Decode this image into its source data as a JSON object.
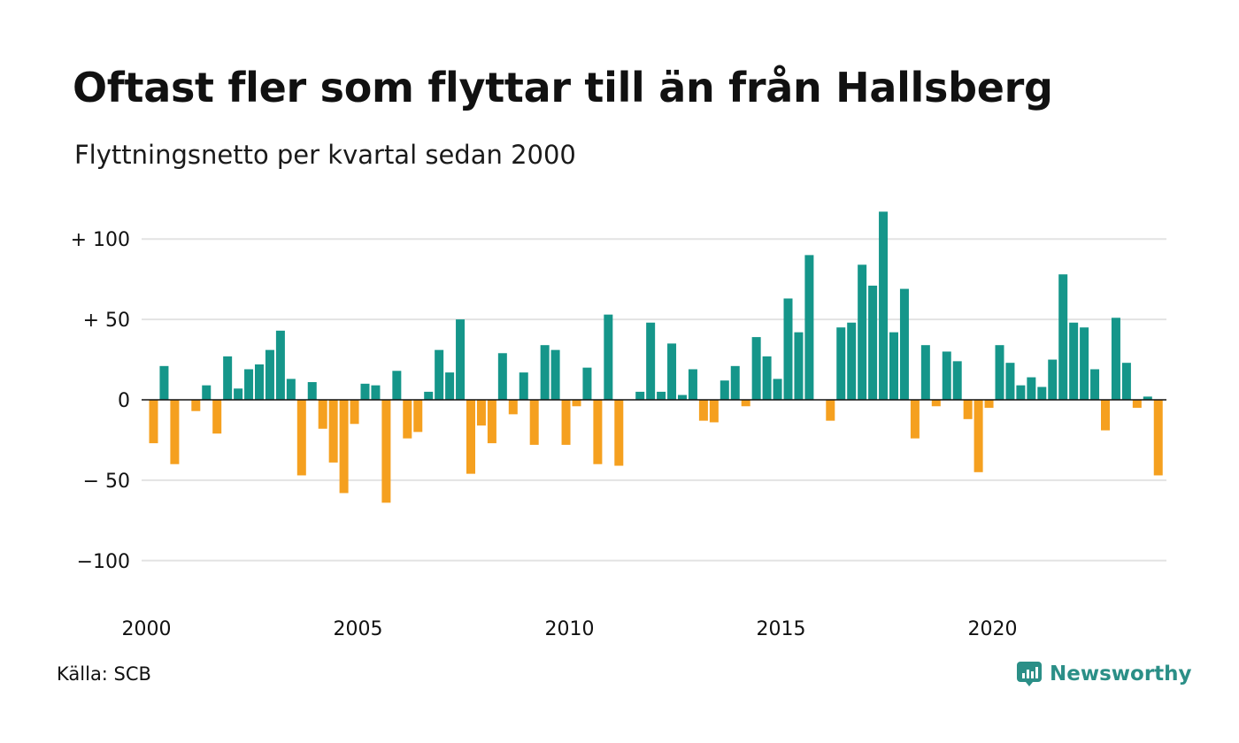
{
  "title": "Oftast fler som flyttar till än från Hallsberg",
  "subtitle": "Flyttningsnetto per kvartal sedan 2000",
  "source": "Källa: SCB",
  "brand": {
    "name": "Newsworthy",
    "icon": "newsworthy-logo-icon",
    "color": "#2b8f87"
  },
  "colors": {
    "positive": "#15968a",
    "negative": "#f5a01f",
    "grid": "#e3e3e3",
    "zero": "#111111"
  },
  "chart_data": {
    "type": "bar",
    "x_start_year": 2000,
    "periods_per_year": 4,
    "values": [
      -27,
      21,
      -40,
      0,
      -7,
      9,
      -21,
      27,
      7,
      19,
      22,
      31,
      43,
      13,
      -47,
      11,
      -18,
      -39,
      -58,
      -15,
      10,
      9,
      -64,
      18,
      -24,
      -20,
      5,
      31,
      17,
      50,
      -46,
      -16,
      -27,
      29,
      -9,
      17,
      -28,
      34,
      31,
      -28,
      -4,
      20,
      -40,
      53,
      -41,
      0,
      5,
      48,
      5,
      35,
      3,
      19,
      -13,
      -14,
      12,
      21,
      -4,
      39,
      27,
      13,
      63,
      42,
      90,
      0,
      -13,
      45,
      48,
      84,
      71,
      117,
      42,
      69,
      -24,
      34,
      -4,
      30,
      24,
      -12,
      -45,
      -5,
      34,
      23,
      9,
      14,
      8,
      25,
      78,
      48,
      45,
      19,
      -19,
      51,
      23,
      -5,
      2,
      -47
    ],
    "ylim": [
      -125,
      125
    ],
    "y_ticks": [
      100,
      50,
      0,
      -50,
      -100
    ],
    "y_tick_labels": [
      "+ 100",
      "+  50",
      "0",
      "− 50",
      "−100"
    ],
    "x_ticks": [
      2000,
      2005,
      2010,
      2015,
      2020
    ],
    "x_tick_labels": [
      "2000",
      "2005",
      "2010",
      "2015",
      "2020"
    ],
    "grid": true,
    "xlabel": "",
    "ylabel": ""
  }
}
